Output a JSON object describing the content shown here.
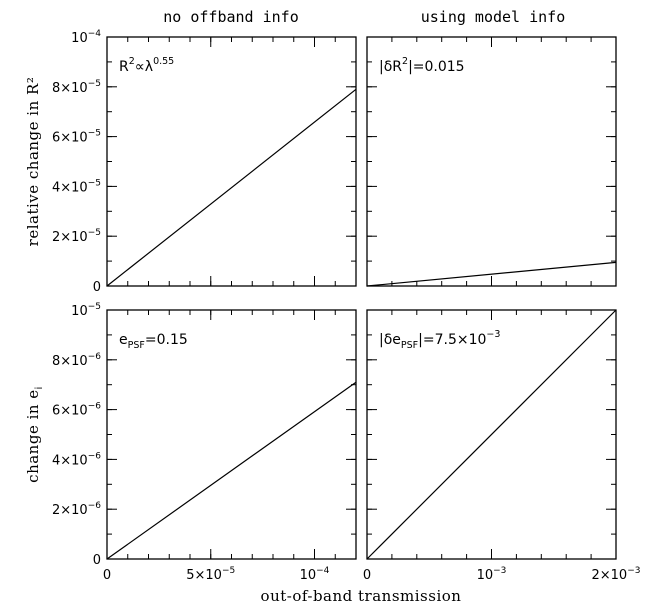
{
  "figure": {
    "column_titles": [
      "no offband info",
      "using model info"
    ],
    "xlabel": "out-of-band transmission"
  },
  "chart_data": [
    {
      "type": "line",
      "position": "top-left",
      "title": "",
      "ylabel": "relative change in R²",
      "xlabel": "",
      "xlim": [
        0,
        0.00012
      ],
      "ylim": [
        0,
        0.0001
      ],
      "x_tick_labels": [],
      "y_tick_labels": [
        {
          "v": 0,
          "m": "0",
          "e": ""
        },
        {
          "v": 2e-05,
          "m": "2×10",
          "e": "−5"
        },
        {
          "v": 4e-05,
          "m": "4×10",
          "e": "−5"
        },
        {
          "v": 6e-05,
          "m": "6×10",
          "e": "−5"
        },
        {
          "v": 8e-05,
          "m": "8×10",
          "e": "−5"
        },
        {
          "v": 0.0001,
          "m": "10",
          "e": "−4"
        }
      ],
      "x_minor_step": 1e-05,
      "y_minor_step": 1e-05,
      "annotation": {
        "parts": [
          [
            "R",
            "n"
          ],
          [
            "2",
            "sup"
          ],
          [
            "∝λ",
            "n"
          ],
          [
            "0.55",
            "sup"
          ]
        ]
      },
      "series": [
        {
          "x": [
            0,
            0.00012
          ],
          "y": [
            0,
            7.9e-05
          ]
        }
      ]
    },
    {
      "type": "line",
      "position": "top-right",
      "title": "",
      "ylabel": "",
      "xlabel": "",
      "xlim": [
        0,
        0.002
      ],
      "ylim": [
        0,
        0.0001
      ],
      "x_tick_labels": [],
      "y_tick_labels": [],
      "x_minor_step": 0.0002,
      "y_minor_step": 1e-05,
      "annotation": {
        "parts": [
          [
            "|δR",
            "n"
          ],
          [
            "2",
            "sup"
          ],
          [
            "|=0.015",
            "n"
          ]
        ]
      },
      "series": [
        {
          "x": [
            0,
            0.002
          ],
          "y": [
            0,
            9.5e-06
          ]
        }
      ]
    },
    {
      "type": "line",
      "position": "bottom-left",
      "title": "",
      "ylabel": "change in e",
      "ylabel_sub": "i",
      "xlabel": "",
      "xlim": [
        0,
        0.00012
      ],
      "ylim": [
        0,
        1e-05
      ],
      "x_tick_labels": [
        {
          "v": 0,
          "m": "0",
          "e": ""
        },
        {
          "v": 5e-05,
          "m": "5×10",
          "e": "−5"
        },
        {
          "v": 0.0001,
          "m": "10",
          "e": "−4"
        }
      ],
      "y_tick_labels": [
        {
          "v": 0,
          "m": "0",
          "e": ""
        },
        {
          "v": 2e-06,
          "m": "2×10",
          "e": "−6"
        },
        {
          "v": 4e-06,
          "m": "4×10",
          "e": "−6"
        },
        {
          "v": 6e-06,
          "m": "6×10",
          "e": "−6"
        },
        {
          "v": 8e-06,
          "m": "8×10",
          "e": "−6"
        },
        {
          "v": 1e-05,
          "m": "10",
          "e": "−5"
        }
      ],
      "x_minor_step": 1e-05,
      "y_minor_step": 1e-06,
      "annotation": {
        "parts": [
          [
            "e",
            "n"
          ],
          [
            "PSF",
            "sub"
          ],
          [
            "=0.15",
            "n"
          ]
        ]
      },
      "series": [
        {
          "x": [
            0,
            0.00012
          ],
          "y": [
            0,
            7.1e-06
          ]
        }
      ]
    },
    {
      "type": "line",
      "position": "bottom-right",
      "title": "",
      "ylabel": "",
      "xlabel": "",
      "xlim": [
        0,
        0.002
      ],
      "ylim": [
        0,
        1e-05
      ],
      "x_tick_labels": [
        {
          "v": 0,
          "m": "0",
          "e": ""
        },
        {
          "v": 0.001,
          "m": "10",
          "e": "−3"
        },
        {
          "v": 0.002,
          "m": "2×10",
          "e": "−3"
        }
      ],
      "y_tick_labels": [],
      "x_minor_step": 0.0002,
      "y_minor_step": 1e-06,
      "annotation": {
        "parts": [
          [
            "|δe",
            "n"
          ],
          [
            "PSF",
            "sub"
          ],
          [
            "|=7.5×10",
            "n"
          ],
          [
            "−3",
            "sup"
          ]
        ]
      },
      "series": [
        {
          "x": [
            0,
            0.002
          ],
          "y": [
            0,
            1e-05
          ]
        }
      ]
    }
  ]
}
